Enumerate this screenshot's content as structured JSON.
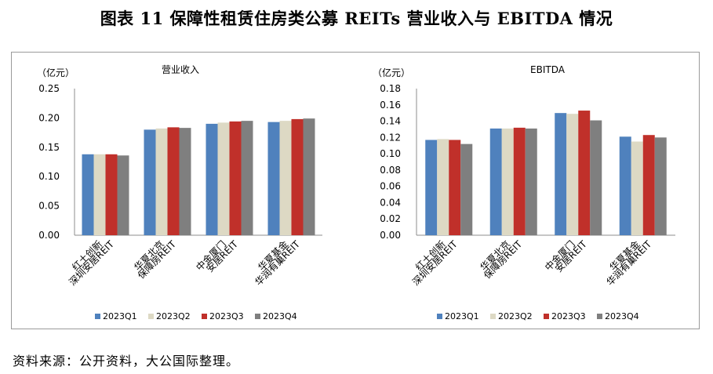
{
  "page": {
    "title": "图表 11 保障性租赁住房类公募 REITs 营业收入与 EBITDA 情况",
    "source": "资料来源：公开资料，大公国际整理。"
  },
  "colors": {
    "2023Q1": "#4f81bd",
    "2023Q2": "#ddd9c4",
    "2023Q3": "#c0302a",
    "2023Q4": "#7f7f7f"
  },
  "chart_data": [
    {
      "type": "bar",
      "title": "营业收入",
      "unit_label": "（亿元）",
      "categories": [
        [
          "红土创新",
          "深圳安居REIT"
        ],
        [
          "华夏北京",
          "保障房REIT"
        ],
        [
          "中金厦门",
          "安居REIT"
        ],
        [
          "华夏基金",
          "华润有巢REIT"
        ]
      ],
      "series": [
        {
          "name": "2023Q1",
          "values": [
            0.138,
            0.18,
            0.19,
            0.193
          ]
        },
        {
          "name": "2023Q2",
          "values": [
            0.138,
            0.182,
            0.192,
            0.195
          ]
        },
        {
          "name": "2023Q3",
          "values": [
            0.138,
            0.184,
            0.194,
            0.198
          ]
        },
        {
          "name": "2023Q4",
          "values": [
            0.136,
            0.183,
            0.195,
            0.199
          ]
        }
      ],
      "ylim": [
        0,
        0.25
      ],
      "yticks": [
        "0.00",
        "0.05",
        "0.10",
        "0.15",
        "0.20",
        "0.25"
      ],
      "legend_position": "bottom",
      "grid": false
    },
    {
      "type": "bar",
      "title": "EBITDA",
      "unit_label": "（亿元）",
      "categories": [
        [
          "红土创新",
          "深圳安居REIT"
        ],
        [
          "华夏北京",
          "保障房REIT"
        ],
        [
          "中金厦门",
          "安居REIT"
        ],
        [
          "华夏基金",
          "华润有巢REIT"
        ]
      ],
      "series": [
        {
          "name": "2023Q1",
          "values": [
            0.117,
            0.131,
            0.15,
            0.121
          ]
        },
        {
          "name": "2023Q2",
          "values": [
            0.118,
            0.131,
            0.149,
            0.115
          ]
        },
        {
          "name": "2023Q3",
          "values": [
            0.117,
            0.132,
            0.153,
            0.123
          ]
        },
        {
          "name": "2023Q4",
          "values": [
            0.112,
            0.131,
            0.141,
            0.12
          ]
        }
      ],
      "ylim": [
        0,
        0.18
      ],
      "yticks": [
        "0.00",
        "0.02",
        "0.04",
        "0.06",
        "0.08",
        "0.10",
        "0.12",
        "0.14",
        "0.16",
        "0.18"
      ],
      "legend_position": "bottom",
      "grid": false
    }
  ]
}
